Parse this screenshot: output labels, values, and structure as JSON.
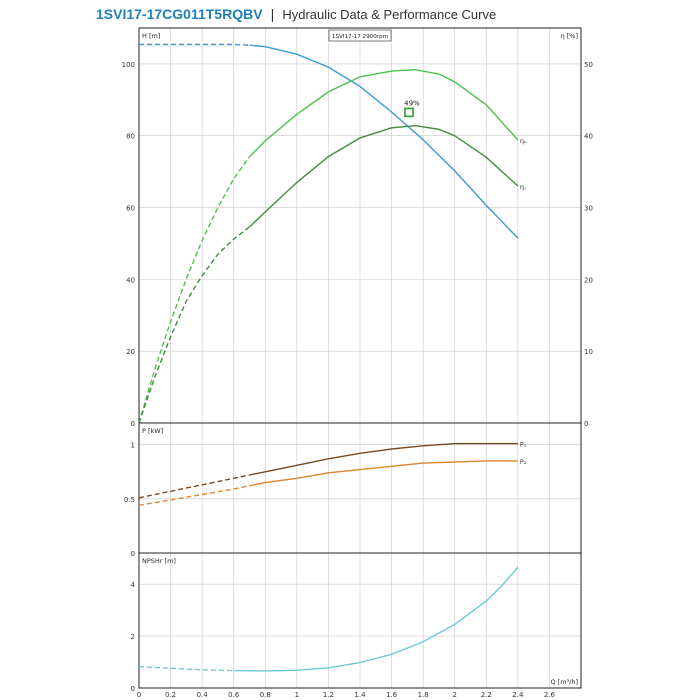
{
  "header": {
    "model": "1SVI17-17CG011T5RQBV",
    "separator": "|",
    "subtitle": "Hydraulic Data & Performance Curve"
  },
  "colors": {
    "head": "#3a9bd0",
    "eta_p": "#4cc24c",
    "eta_c": "#3f8f3a",
    "p1": "#7a4a22",
    "p2": "#d9892e",
    "npsh": "#6cc8dc",
    "bep": "#2e9e2e",
    "grid": "#c8c8c8"
  },
  "chart_data": [
    {
      "type": "line",
      "panel": "head",
      "legend": "1SVI17-17 2900rpm",
      "ylabel": "H [m]",
      "y2label": "η [%]",
      "xlim": [
        0,
        2.8
      ],
      "ylim": [
        0,
        110
      ],
      "y2lim": [
        0,
        55
      ],
      "yticks": [
        "0",
        "20",
        "40",
        "60",
        "80",
        "100"
      ],
      "y2ticks": [
        "0",
        "10",
        "20",
        "30",
        "40",
        "50"
      ],
      "grid": true,
      "series": [
        {
          "name": "H",
          "axis": "left",
          "x": [
            0,
            0.2,
            0.4,
            0.6,
            0.7,
            0.8,
            1.0,
            1.2,
            1.4,
            1.6,
            1.8,
            2.0,
            2.2,
            2.4
          ],
          "y": [
            105.4,
            105.4,
            105.4,
            105.4,
            105.2,
            104.8,
            102.7,
            99.1,
            93.7,
            86.6,
            78.9,
            70.2,
            60.6,
            51.5
          ],
          "dashed_until": 0.7
        },
        {
          "name": "ηp",
          "label": "ηₚ",
          "axis": "right",
          "x": [
            0,
            0.1,
            0.2,
            0.3,
            0.4,
            0.5,
            0.6,
            0.7,
            0.8,
            1.0,
            1.2,
            1.4,
            1.6,
            1.75,
            1.9,
            2.0,
            2.2,
            2.4
          ],
          "y": [
            0,
            7.5,
            14.1,
            20.1,
            25.4,
            30.0,
            34.0,
            37.1,
            39.3,
            43.0,
            46.1,
            48.2,
            49.0,
            49.2,
            48.6,
            47.5,
            44.3,
            39.4
          ],
          "dashed_until": 0.7
        },
        {
          "name": "ηc",
          "label": "η꜀",
          "axis": "right",
          "x": [
            0,
            0.1,
            0.2,
            0.3,
            0.4,
            0.5,
            0.6,
            0.7,
            0.8,
            1.0,
            1.2,
            1.4,
            1.6,
            1.75,
            1.9,
            2.0,
            2.2,
            2.4
          ],
          "y": [
            0,
            6.4,
            12.0,
            17.0,
            20.5,
            23.5,
            25.6,
            27.3,
            29.4,
            33.5,
            37.1,
            39.7,
            41.1,
            41.4,
            40.9,
            40.0,
            37.0,
            33.0
          ],
          "dashed_until": 0.7
        }
      ],
      "annotations": [
        {
          "text": "49%",
          "x": 1.71,
          "y": 86.5
        }
      ]
    },
    {
      "type": "line",
      "panel": "power",
      "ylabel": "P [kW]",
      "xlim": [
        0,
        2.8
      ],
      "ylim": [
        0,
        1.2
      ],
      "yticks": [
        "0",
        "0.5",
        "1"
      ],
      "grid": true,
      "series": [
        {
          "name": "P1",
          "label": "P₁",
          "x": [
            0,
            0.2,
            0.4,
            0.6,
            0.7,
            0.8,
            1.0,
            1.2,
            1.4,
            1.6,
            1.8,
            2.0,
            2.2,
            2.4
          ],
          "y": [
            0.51,
            0.57,
            0.63,
            0.69,
            0.72,
            0.75,
            0.81,
            0.87,
            0.92,
            0.96,
            0.99,
            1.01,
            1.01,
            1.01
          ],
          "dashed_until": 0.7
        },
        {
          "name": "P2",
          "label": "P₂",
          "x": [
            0,
            0.2,
            0.4,
            0.6,
            0.7,
            0.8,
            1.0,
            1.2,
            1.4,
            1.6,
            1.8,
            2.0,
            2.2,
            2.4
          ],
          "y": [
            0.44,
            0.49,
            0.54,
            0.59,
            0.62,
            0.65,
            0.69,
            0.74,
            0.77,
            0.8,
            0.83,
            0.84,
            0.85,
            0.85
          ],
          "dashed_until": 0.7
        }
      ]
    },
    {
      "type": "line",
      "panel": "npsh",
      "ylabel": "NPSHr [m]",
      "xlabel": "Q [m³/h]",
      "xlim": [
        0,
        2.8
      ],
      "ylim": [
        0,
        5.2
      ],
      "yticks": [
        "0",
        "2",
        "4"
      ],
      "xticks": [
        "0",
        "0.2",
        "0.4",
        "0.6",
        "0.8",
        "1",
        "1.2",
        "1.4",
        "1.6",
        "1.8",
        "2",
        "2.2",
        "2.4",
        "2.6"
      ],
      "grid": true,
      "series": [
        {
          "name": "NPSHr",
          "x": [
            0,
            0.2,
            0.4,
            0.6,
            0.8,
            1.0,
            1.2,
            1.4,
            1.6,
            1.8,
            2.0,
            2.2,
            2.3,
            2.4
          ],
          "y": [
            0.82,
            0.76,
            0.7,
            0.67,
            0.66,
            0.68,
            0.78,
            0.98,
            1.3,
            1.78,
            2.45,
            3.35,
            3.95,
            4.65
          ],
          "dashed_until": 0.6
        }
      ]
    }
  ]
}
